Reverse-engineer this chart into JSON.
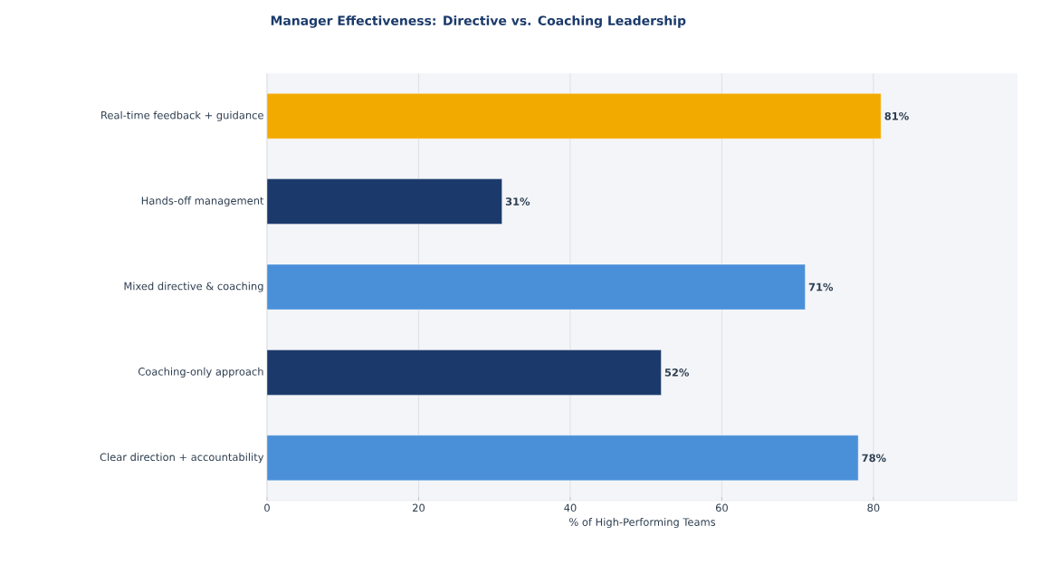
{
  "chart_data": {
    "type": "bar",
    "orientation": "horizontal",
    "title": "Manager Effectiveness: Directive vs. Coaching Leadership",
    "xlabel": "% of High-Performing Teams",
    "categories": [
      "Real-time feedback + guidance",
      "Hands-off management",
      "Mixed directive & coaching",
      "Coaching-only approach",
      "Clear direction + accountability"
    ],
    "values": [
      81,
      31,
      71,
      52,
      78
    ],
    "colors": [
      "#f2aa00",
      "#1b3a6b",
      "#4a90d9",
      "#1b3a6b",
      "#4a90d9"
    ],
    "value_labels": [
      "81%",
      "31%",
      "71%",
      "52%",
      "78%"
    ],
    "xlim": [
      0,
      99
    ],
    "xticks": [
      0,
      20,
      40,
      60,
      80
    ],
    "grid": "x"
  }
}
